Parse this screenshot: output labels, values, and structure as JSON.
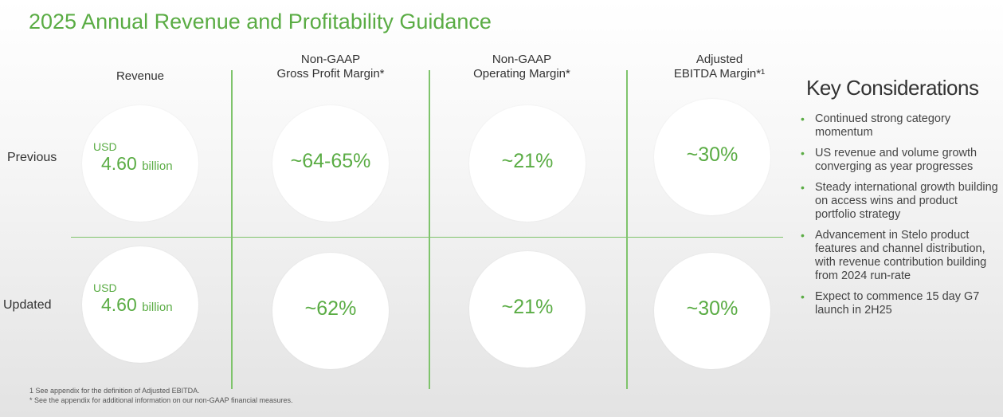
{
  "title": "2025 Annual Revenue and Profitability Guidance",
  "columns": [
    {
      "line1": "",
      "line2": "Revenue"
    },
    {
      "line1": "Non-GAAP",
      "line2": "Gross Profit Margin*"
    },
    {
      "line1": "Non-GAAP",
      "line2": "Operating Margin*"
    },
    {
      "line1": "Adjusted",
      "line2": "EBITDA Margin*¹"
    }
  ],
  "rows": [
    {
      "label": "Previous",
      "revenue": {
        "currency": "USD",
        "value": "4.60",
        "unit": "billion"
      },
      "gross_margin": "~64-65%",
      "operating_margin": "~21%",
      "ebitda_margin": "~30%"
    },
    {
      "label": "Updated",
      "revenue": {
        "currency": "USD",
        "value": "4.60",
        "unit": "billion"
      },
      "gross_margin": "~62%",
      "operating_margin": "~21%",
      "ebitda_margin": "~30%"
    }
  ],
  "key_considerations": {
    "title": "Key Considerations",
    "bullet_char": "•",
    "items": [
      "Continued strong category momentum",
      "US revenue and volume growth converging as year progresses",
      "Steady international growth building on access wins and product portfolio strategy",
      "Advancement in Stelo product features and channel distribution, with revenue contribution building from 2024 run-rate",
      "Expect to commence 15 day G7 launch in 2H25"
    ]
  },
  "footnotes": [
    "1 See appendix for the definition of Adjusted EBITDA.",
    "* See the appendix for additional information on our non-GAAP financial measures."
  ],
  "colors": {
    "accent": "#5aac44",
    "grid_line": "#7fc46c",
    "text": "#333333"
  }
}
